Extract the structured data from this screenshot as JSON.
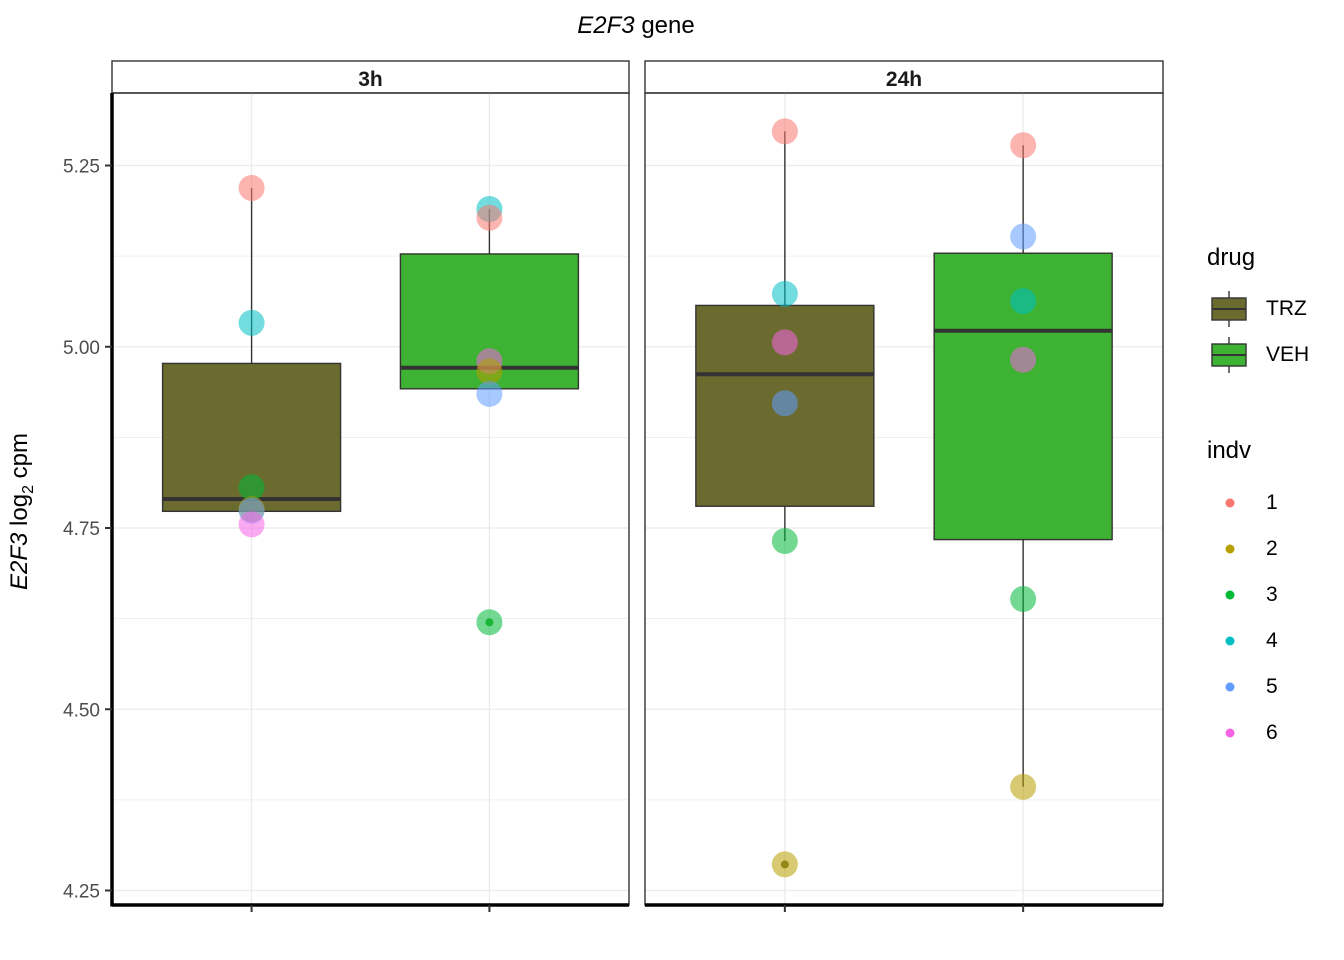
{
  "chart_data": {
    "type": "box",
    "title_gene": "E2F3",
    "title_suffix": " gene",
    "ylabel_gene": "E2F3",
    "ylabel_log": "log",
    "ylabel_sub": "2",
    "ylabel_unit": " cpm",
    "ylim": [
      4.23,
      5.35
    ],
    "yticks": [
      "4.25",
      "4.50",
      "4.75",
      "5.00",
      "5.25"
    ],
    "grid": true,
    "legend_position": "right",
    "panels": [
      {
        "label": "3h",
        "boxes": [
          {
            "drug": "TRZ",
            "lower": 4.773,
            "q1": 4.773,
            "median": 4.79,
            "q3": 4.977,
            "upper": 5.219
          },
          {
            "drug": "VEH",
            "lower": 4.942,
            "q1": 4.942,
            "median": 4.971,
            "q3": 5.128,
            "upper": 5.19,
            "outliers": [
              4.62
            ]
          }
        ],
        "points": [
          {
            "drug": "TRZ",
            "indv": "1",
            "value": 5.219
          },
          {
            "drug": "TRZ",
            "indv": "4",
            "value": 5.033
          },
          {
            "drug": "TRZ",
            "indv": "3",
            "value": 4.806
          },
          {
            "drug": "TRZ",
            "indv": "2",
            "value": 4.776
          },
          {
            "drug": "TRZ",
            "indv": "5",
            "value": 4.774
          },
          {
            "drug": "TRZ",
            "indv": "6",
            "value": 4.755
          },
          {
            "drug": "VEH",
            "indv": "4",
            "value": 5.19
          },
          {
            "drug": "VEH",
            "indv": "1",
            "value": 5.178
          },
          {
            "drug": "VEH",
            "indv": "6",
            "value": 4.98
          },
          {
            "drug": "VEH",
            "indv": "2",
            "value": 4.966
          },
          {
            "drug": "VEH",
            "indv": "5",
            "value": 4.935
          },
          {
            "drug": "VEH",
            "indv": "3",
            "value": 4.62
          }
        ]
      },
      {
        "label": "24h",
        "boxes": [
          {
            "drug": "TRZ",
            "lower": 4.732,
            "q1": 4.78,
            "median": 4.962,
            "q3": 5.057,
            "upper": 5.297,
            "outliers": [
              4.286
            ]
          },
          {
            "drug": "VEH",
            "lower": 4.393,
            "q1": 4.734,
            "median": 5.022,
            "q3": 5.129,
            "upper": 5.278
          }
        ],
        "points": [
          {
            "drug": "TRZ",
            "indv": "1",
            "value": 5.297
          },
          {
            "drug": "TRZ",
            "indv": "4",
            "value": 5.073
          },
          {
            "drug": "TRZ",
            "indv": "6",
            "value": 5.006
          },
          {
            "drug": "TRZ",
            "indv": "5",
            "value": 4.922
          },
          {
            "drug": "TRZ",
            "indv": "3",
            "value": 4.732
          },
          {
            "drug": "TRZ",
            "indv": "2",
            "value": 4.286
          },
          {
            "drug": "VEH",
            "indv": "1",
            "value": 5.278
          },
          {
            "drug": "VEH",
            "indv": "5",
            "value": 5.152
          },
          {
            "drug": "VEH",
            "indv": "4",
            "value": 5.063
          },
          {
            "drug": "VEH",
            "indv": "6",
            "value": 4.982
          },
          {
            "drug": "VEH",
            "indv": "3",
            "value": 4.652
          },
          {
            "drug": "VEH",
            "indv": "2",
            "value": 4.393
          }
        ]
      }
    ],
    "legend": {
      "drug_title": "drug",
      "drug_items": [
        {
          "label": "TRZ",
          "color": "#6b6b2f"
        },
        {
          "label": "VEH",
          "color": "#3db233"
        }
      ],
      "indv_title": "indv",
      "indv_items": [
        {
          "label": "1",
          "color": "#F8766D"
        },
        {
          "label": "2",
          "color": "#B79F00"
        },
        {
          "label": "3",
          "color": "#00BA38"
        },
        {
          "label": "4",
          "color": "#00BFC4"
        },
        {
          "label": "5",
          "color": "#619CFF"
        },
        {
          "label": "6",
          "color": "#F564E3"
        }
      ]
    }
  }
}
